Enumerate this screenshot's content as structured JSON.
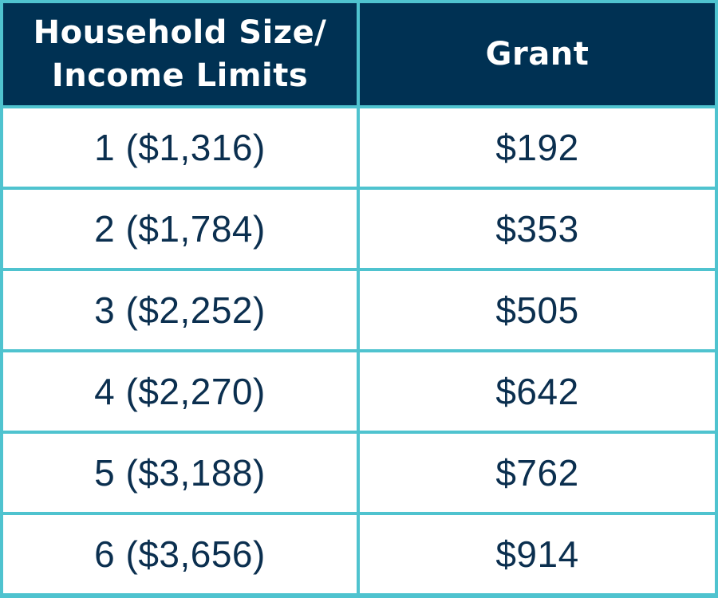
{
  "colors": {
    "header_bg": "#003153",
    "header_text": "#ffffff",
    "border": "#4fc3cf",
    "body_text": "#0b2f4f",
    "body_bg": "#ffffff"
  },
  "table": {
    "headers": [
      "Household Size/\nIncome Limits",
      "Grant"
    ],
    "header_lines": {
      "col1": [
        "Household Size/",
        "Income Limits"
      ],
      "col2": "Grant"
    },
    "rows": [
      [
        "1 ($1,316)",
        "$192"
      ],
      [
        "2 ($1,784)",
        "$353"
      ],
      [
        "3 ($2,252)",
        "$505"
      ],
      [
        "4 ($2,270)",
        "$642"
      ],
      [
        "5 ($3,188)",
        "$762"
      ],
      [
        "6 ($3,656)",
        "$914"
      ]
    ]
  }
}
